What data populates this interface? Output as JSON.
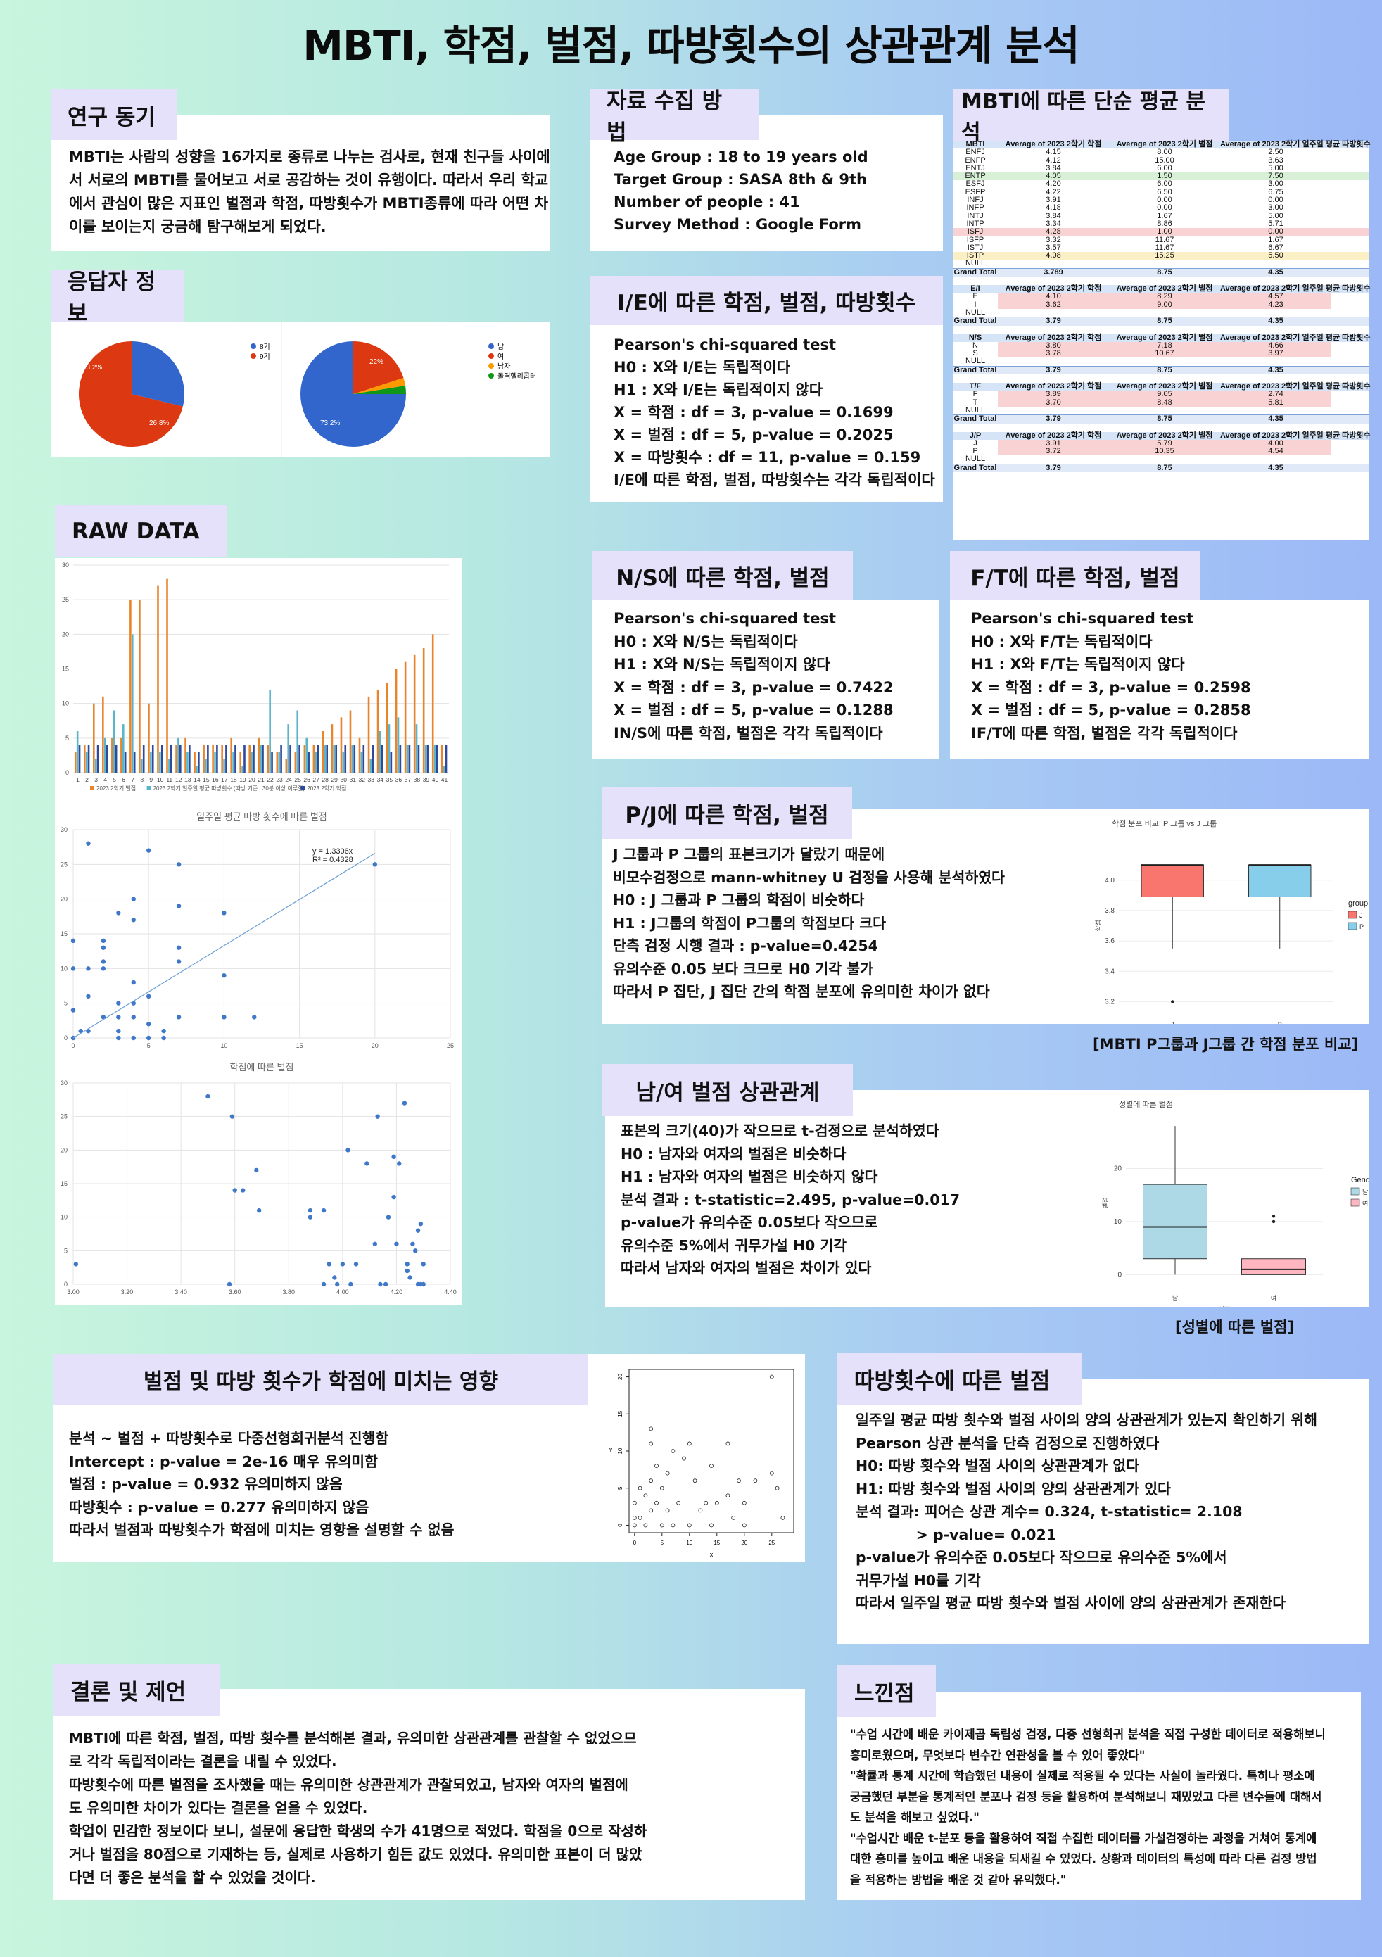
{
  "title": "MBTI, 학점, 벌점, 따방횟수의 상관관계 분석",
  "motivation": {
    "tag": "연구 동기",
    "lines": [
      "MBTI는 사람의 성향을 16가지로 종류로 나누는 검사로, 현재 친구들 사이에",
      "서 서로의 MBTI를 물어보고 서로 공감하는 것이 유행이다. 따라서 우리 학교",
      "에서 관심이 많은 지표인 벌점과 학점, 따방횟수가 MBTI종류에 따라 어떤 차",
      "이를 보이는지 궁금해 탐구해보게 되었다."
    ]
  },
  "data_collection": {
    "tag": "자료 수집 방법",
    "lines": [
      "Age Group : 18 to 19 years old",
      "Target Group : SASA 8th & 9th",
      "Number of people : 41",
      "Survey Method : Google Form"
    ]
  },
  "mbti_means": {
    "tag": "MBTI에 따른 단순 평균 분석",
    "headers": [
      "MBTI",
      "Average of 2023 2학기 학점",
      "Average of 2023 2학기 벌점",
      "Average of 2023 2학기 일주일 평균 따방횟수"
    ],
    "main_rows": [
      [
        "ENFJ",
        "4.15",
        "8.00",
        "2.50"
      ],
      [
        "ENFP",
        "4.12",
        "15.00",
        "3.63"
      ],
      [
        "ENTJ",
        "3.84",
        "6.00",
        "5.00"
      ],
      [
        "ENTP",
        "4.05",
        "1.50",
        "7.50"
      ],
      [
        "ESFJ",
        "4.20",
        "6.00",
        "3.00"
      ],
      [
        "ESFP",
        "4.22",
        "6.50",
        "6.75"
      ],
      [
        "INFJ",
        "3.91",
        "0.00",
        "0.00"
      ],
      [
        "INFP",
        "4.18",
        "0.00",
        "3.00"
      ],
      [
        "INTJ",
        "3.84",
        "1.67",
        "5.00"
      ],
      [
        "INTP",
        "3.34",
        "8.86",
        "5.71"
      ],
      [
        "ISFJ",
        "4.28",
        "1.00",
        "0.00"
      ],
      [
        "ISFP",
        "3.32",
        "11.67",
        "1.67"
      ],
      [
        "ISTJ",
        "3.57",
        "11.67",
        "6.67"
      ],
      [
        "ISTP",
        "4.08",
        "15.25",
        "5.50"
      ],
      [
        "NULL",
        "",
        "",
        ""
      ]
    ],
    "main_total": [
      "Grand Total",
      "3.789",
      "8.75",
      "4.35"
    ],
    "groups": [
      {
        "key": "E/I",
        "rows": [
          [
            "E",
            "4.10",
            "8.29",
            "4.57"
          ],
          [
            "I",
            "3.62",
            "9.00",
            "4.23"
          ],
          [
            "NULL",
            "",
            "",
            ""
          ]
        ],
        "total": [
          "Grand Total",
          "3.79",
          "8.75",
          "4.35"
        ]
      },
      {
        "key": "N/S",
        "rows": [
          [
            "N",
            "3.80",
            "7.18",
            "4.66"
          ],
          [
            "S",
            "3.78",
            "10.67",
            "3.97"
          ],
          [
            "NULL",
            "",
            "",
            ""
          ]
        ],
        "total": [
          "Grand Total",
          "3.79",
          "8.75",
          "4.35"
        ]
      },
      {
        "key": "T/F",
        "rows": [
          [
            "F",
            "3.89",
            "9.05",
            "2.74"
          ],
          [
            "T",
            "3.70",
            "8.48",
            "5.81"
          ],
          [
            "NULL",
            "",
            "",
            ""
          ]
        ],
        "total": [
          "Grand Total",
          "3.79",
          "8.75",
          "4.35"
        ]
      },
      {
        "key": "J/P",
        "rows": [
          [
            "J",
            "3.91",
            "5.79",
            "4.00"
          ],
          [
            "P",
            "3.72",
            "10.35",
            "4.54"
          ],
          [
            "NULL",
            "",
            "",
            ""
          ]
        ],
        "total": [
          "Grand Total",
          "3.79",
          "8.75",
          "4.35"
        ]
      }
    ]
  },
  "respondents": {
    "tag": "응답자 정보",
    "pie1": {
      "legend": [
        "8기",
        "9기"
      ],
      "labels": [
        "73.2%",
        "26.8%"
      ],
      "colors": [
        "#3366cc",
        "#dc3912"
      ]
    },
    "pie2": {
      "legend": [
        "남",
        "여",
        "남자",
        "돌격헬리콥터"
      ],
      "labels": [
        "73.2%",
        "22%"
      ],
      "colors": [
        "#3366cc",
        "#dc3912",
        "#ff9900",
        "#109618"
      ]
    }
  },
  "ie": {
    "tag": "I/E에 따른 학점, 벌점, 따방횟수",
    "lines": [
      "Pearson's chi-squared test",
      "H0 : X와 I/E는 독립적이다",
      "H1 : X와 I/E는 독립적이지 않다",
      "X = 학점 : df = 3, p-value = 0.1699",
      "X = 벌점 : df = 5, p-value = 0.2025",
      "X = 따방횟수 : df = 11, p-value = 0.159",
      "I/E에 따른 학점, 벌점, 따방횟수는 각각 독립적이다"
    ]
  },
  "raw": {
    "tag": "RAW DATA",
    "bar_chart": {
      "type": "bar",
      "categories": [
        "1",
        "2",
        "3",
        "4",
        "5",
        "6",
        "7",
        "8",
        "9",
        "10",
        "11",
        "12",
        "13",
        "14",
        "15",
        "16",
        "17",
        "18",
        "19",
        "20",
        "21",
        "22",
        "23",
        "24",
        "25",
        "26",
        "27",
        "28",
        "29",
        "30",
        "31",
        "32",
        "33",
        "34",
        "35",
        "36",
        "37",
        "38",
        "39",
        "40",
        "41"
      ],
      "series": [
        {
          "name": "2023 2학기 벌점",
          "color": "#e9842c",
          "values": [
            3,
            4,
            10,
            11,
            5,
            5,
            25,
            25,
            10,
            27,
            28,
            4,
            5,
            3,
            4,
            4,
            4,
            5,
            3,
            4,
            5,
            4,
            3,
            2,
            3,
            4,
            4,
            6,
            7,
            8,
            9,
            5,
            11,
            12,
            13,
            15,
            16,
            17,
            18,
            20,
            4
          ]
        },
        {
          "name": "2023 2학기 일주일 평균 따방횟수 (따방 기준 : 30분 이상 이루질)",
          "color": "#5bb5c8",
          "values": [
            6,
            3,
            2,
            5,
            9,
            7,
            20,
            2,
            3,
            3,
            2,
            5,
            3,
            1,
            2,
            3,
            2,
            3,
            1,
            3,
            4,
            12,
            3,
            7,
            9,
            5,
            3,
            4,
            4,
            3,
            4,
            3,
            2,
            6,
            7,
            8,
            4,
            7,
            4,
            4,
            1
          ]
        },
        {
          "name": "2023 2학기 학점",
          "color": "#2e4a9c",
          "values": [
            4,
            4,
            4,
            4,
            4,
            3,
            3,
            4,
            4,
            4,
            4,
            4,
            4,
            3,
            4,
            4,
            4,
            4,
            4,
            4,
            4,
            3,
            4,
            4,
            4,
            3,
            4,
            4,
            4,
            4,
            4,
            4,
            4,
            4,
            3,
            4,
            4,
            4,
            4,
            4,
            4
          ]
        }
      ],
      "ylim": [
        0,
        30
      ],
      "yticks": [
        "0",
        "5",
        "10",
        "15",
        "20",
        "25",
        "30"
      ]
    },
    "scatter1": {
      "type": "scatter",
      "title": "일주일 평균 따방 횟수에 따른 벌점",
      "trend_eq": "y = 1.3306x",
      "trend_r2": "R² = 0.4328",
      "xlim": [
        0,
        25
      ],
      "ylim": [
        0,
        30
      ],
      "xticks": [
        "0",
        "5",
        "10",
        "15",
        "20",
        "25"
      ],
      "yticks": [
        "0",
        "5",
        "10",
        "15",
        "20",
        "25",
        "30"
      ],
      "points": [
        [
          0,
          0
        ],
        [
          0,
          14
        ],
        [
          0,
          10
        ],
        [
          0.5,
          1
        ],
        [
          1,
          28
        ],
        [
          1,
          6
        ],
        [
          1,
          10
        ],
        [
          2,
          3
        ],
        [
          2,
          10
        ],
        [
          2,
          14
        ],
        [
          3,
          18
        ],
        [
          3,
          3
        ],
        [
          3,
          1
        ],
        [
          4,
          0
        ],
        [
          4,
          5
        ],
        [
          5,
          2
        ],
        [
          5,
          27
        ],
        [
          5,
          6
        ],
        [
          6,
          1
        ],
        [
          6,
          0
        ],
        [
          4,
          3
        ],
        [
          4,
          8
        ],
        [
          4,
          17
        ],
        [
          4,
          20
        ],
        [
          3,
          5
        ],
        [
          2,
          13
        ],
        [
          2,
          11
        ],
        [
          7,
          25
        ],
        [
          7,
          19
        ],
        [
          7,
          13
        ],
        [
          7,
          11
        ],
        [
          10,
          18
        ],
        [
          10,
          9
        ],
        [
          10,
          3
        ],
        [
          12,
          3
        ],
        [
          20,
          25
        ],
        [
          7,
          3
        ],
        [
          3,
          0
        ],
        [
          1,
          1
        ],
        [
          0,
          4
        ],
        [
          5,
          0
        ]
      ]
    },
    "scatter2": {
      "type": "scatter",
      "title": "학점에 따른 벌점",
      "xlim": [
        3.0,
        4.4
      ],
      "ylim": [
        0,
        30
      ],
      "xticks": [
        "3.00",
        "3.20",
        "3.40",
        "3.60",
        "3.80",
        "4.00",
        "4.20",
        "4.40"
      ],
      "yticks": [
        "0",
        "5",
        "10",
        "15",
        "20",
        "25",
        "30"
      ],
      "points": [
        [
          3.01,
          3
        ],
        [
          3.5,
          28
        ],
        [
          3.59,
          25
        ],
        [
          3.6,
          14
        ],
        [
          3.63,
          14
        ],
        [
          3.68,
          17
        ],
        [
          3.69,
          11
        ],
        [
          3.58,
          0
        ],
        [
          3.88,
          11
        ],
        [
          3.88,
          10
        ],
        [
          3.93,
          11
        ],
        [
          3.93,
          0
        ],
        [
          3.95,
          3
        ],
        [
          3.97,
          1
        ],
        [
          3.98,
          0
        ],
        [
          4.0,
          3
        ],
        [
          4.02,
          20
        ],
        [
          4.03,
          0
        ],
        [
          4.05,
          3
        ],
        [
          4.09,
          18
        ],
        [
          4.12,
          6
        ],
        [
          4.13,
          25
        ],
        [
          4.16,
          0
        ],
        [
          4.17,
          10
        ],
        [
          4.19,
          19
        ],
        [
          4.19,
          13
        ],
        [
          4.2,
          6
        ],
        [
          4.21,
          18
        ],
        [
          4.23,
          27
        ],
        [
          4.24,
          2
        ],
        [
          4.24,
          3
        ],
        [
          4.25,
          1
        ],
        [
          4.26,
          6
        ],
        [
          4.27,
          5
        ],
        [
          4.28,
          8
        ],
        [
          4.29,
          9
        ],
        [
          4.3,
          3
        ],
        [
          4.3,
          0
        ],
        [
          4.29,
          0
        ],
        [
          4.14,
          0
        ],
        [
          4.28,
          0
        ]
      ]
    }
  },
  "ns": {
    "tag": "N/S에 따른 학점, 벌점",
    "lines": [
      "Pearson's chi-squared test",
      "H0 : X와 N/S는 독립적이다",
      "H1 : X와 N/S는 독립적이지 않다",
      "X = 학점 : df = 3, p-value = 0.7422",
      "X = 벌점 : df = 5, p-value = 0.1288",
      "IN/S에 따른 학점, 벌점은 각각 독립적이다"
    ]
  },
  "ft": {
    "tag": "F/T에 따른 학점, 벌점",
    "lines": [
      "Pearson's chi-squared test",
      "H0 : X와 F/T는 독립적이다",
      "H1 : X와 F/T는 독립적이지 않다",
      "X = 학점 : df = 3, p-value = 0.2598",
      "X = 벌점 : df = 5, p-value = 0.2858",
      "IF/T에 따른 학점, 벌점은 각각 독립적이다"
    ]
  },
  "pj": {
    "tag": "P/J에 따른 학점, 벌점",
    "lines": [
      "J 그룹과 P 그룹의 표본크기가 달랐기 때문에",
      "비모수검정으로 mann-whitney U 검정을 사용해 분석하였다",
      "H0 : J 그룹과 P 그룹의 학점이 비슷하다",
      "H1 : J그룹의 학점이 P그룹의 학점보다 크다",
      "단측 검정 시행 결과 : p-value=0.4254",
      "유의수준 0.05 보다 크므로 H0 기각 불가",
      "따라서 P 집단, J 집단 간의 학점 분포에 유의미한 차이가 없다"
    ],
    "chart": {
      "type": "boxplot",
      "title": "학점 분포 비교: P 그룹 vs J 그룹",
      "ylabel": "학점",
      "legend_title": "group",
      "ylim": [
        3.1,
        4.3
      ],
      "yticks": [
        "3.2",
        "3.4",
        "3.6",
        "3.8",
        "4.0"
      ],
      "categories": [
        "J",
        "P"
      ],
      "boxes": [
        {
          "name": "J",
          "color": "#f8766d",
          "min": 3.55,
          "q1": 3.89,
          "median": 4.1,
          "q3": 4.1,
          "max": 4.1,
          "outliers": [
            3.2
          ]
        },
        {
          "name": "P",
          "color": "#87ceeb",
          "min": 3.55,
          "q1": 3.89,
          "median": 4.1,
          "q3": 4.1,
          "max": 4.1,
          "outliers": []
        }
      ]
    },
    "caption": "[MBTI P그룹과 J그룹 간 학점 분포 비교]"
  },
  "gender": {
    "tag": "남/여 벌점 상관관계",
    "lines": [
      "표본의 크기(40)가 작으므로 t-검정으로 분석하였다",
      "H0 : 남자와 여자의 벌점은 비슷하다",
      "H1 : 남자와 여자의 벌점은 비슷하지 않다",
      " 분석 결과 : t-statistic=2.495, p-value=0.017",
      "p-value가 유의수준 0.05보다 작으므로",
      "유의수준 5%에서 귀무가설 H0 기각",
      "따라서 남자와 여자의 벌점은 차이가 있다"
    ],
    "chart": {
      "type": "boxplot",
      "title": "성별에 따른 벌점",
      "xlabel": "성별",
      "ylabel": "벌점",
      "legend_title": "Gender",
      "ylim": [
        -3,
        30
      ],
      "yticks": [
        "0",
        "10",
        "20"
      ],
      "categories": [
        "남",
        "여"
      ],
      "boxes": [
        {
          "name": "남",
          "color": "#add8e6",
          "min": 0,
          "q1": 3,
          "median": 9,
          "q3": 17,
          "max": 28,
          "outliers": []
        },
        {
          "name": "여",
          "color": "#ffb6c1",
          "min": 0,
          "q1": 0,
          "median": 1,
          "q3": 3,
          "max": 3,
          "outliers": [
            10,
            11
          ]
        }
      ]
    },
    "caption": "[성별에 따른 벌점]"
  },
  "regression": {
    "tag": "벌점 및 따방 횟수가 학점에 미치는 영향",
    "lines": [
      "분석 ~ 벌점 + 따방횟수로 다중선형회귀분석 진행함",
      "Intercept : p-value = 2e-16 매우 유의미함",
      "벌점 : p-value = 0.932 유의미하지 않음",
      "따방횟수 : p-value = 0.277 유의미하지 않음",
      "따라서 벌점과 따방횟수가 학점에 미치는 영향을 설명할 수 없음"
    ],
    "chart": {
      "type": "scatter",
      "xlabel": "x",
      "ylabel": "y",
      "xlim": [
        -1,
        29
      ],
      "ylim": [
        -1,
        21
      ],
      "xticks": [
        "0",
        "5",
        "10",
        "15",
        "20",
        "25"
      ],
      "yticks": [
        "0",
        "5",
        "10",
        "15",
        "20"
      ],
      "points": [
        [
          0,
          0
        ],
        [
          0,
          3
        ],
        [
          1,
          1
        ],
        [
          1,
          5
        ],
        [
          2,
          4
        ],
        [
          2,
          0
        ],
        [
          3,
          2
        ],
        [
          3,
          6
        ],
        [
          3,
          11
        ],
        [
          3,
          13
        ],
        [
          4,
          8
        ],
        [
          4,
          3
        ],
        [
          5,
          5
        ],
        [
          5,
          0
        ],
        [
          6,
          7
        ],
        [
          6,
          2
        ],
        [
          7,
          10
        ],
        [
          8,
          3
        ],
        [
          10,
          0
        ],
        [
          10,
          11
        ],
        [
          11,
          6
        ],
        [
          12,
          2
        ],
        [
          14,
          8
        ],
        [
          14,
          0
        ],
        [
          15,
          3
        ],
        [
          17,
          4
        ],
        [
          17,
          11
        ],
        [
          19,
          6
        ],
        [
          20,
          0
        ],
        [
          20,
          3
        ],
        [
          25,
          20
        ],
        [
          25,
          7
        ],
        [
          26,
          5
        ],
        [
          27,
          1
        ],
        [
          9,
          9
        ],
        [
          18,
          1
        ],
        [
          7,
          0
        ],
        [
          13,
          3
        ],
        [
          22,
          6
        ],
        [
          0,
          1
        ]
      ]
    }
  },
  "ttabang": {
    "tag": "따방횟수에 따른 벌점",
    "lines": [
      "일주일 평균 따방 횟수와 벌점 사이의 양의 상관관계가 있는지 확인하기 위해",
      "Pearson 상관 분석을 단측 검정으로 진행하였다",
      "H0: 따방 횟수와 벌점 사이의 상관관계가 없다",
      "H1: 따방 횟수와 벌점 사이의 양의 상관관계가 있다",
      "분석 결과: 피어슨 상관 계수= 0.324, t-statistic= 2.108",
      "            > p-value= 0.021",
      "p-value가 유의수준 0.05보다 작으므로 유의수준 5%에서",
      "귀무가설 H0를 기각",
      "따라서 일주일 평균 따방 횟수와 벌점 사이에 양의 상관관계가 존재한다"
    ]
  },
  "conclusion": {
    "tag": "결론 및 제언",
    "lines": [
      "MBTI에 따른 학점, 벌점, 따방 횟수를 분석해본 결과, 유의미한 상관관계를 관찰할 수 없었으므",
      "로 각각 독립적이라는 결론을 내릴 수 있었다.",
      "따방횟수에 따른 벌점을 조사했을 때는 유의미한 상관관계가 관찰되었고, 남자와 여자의 벌점에",
      "도 유의미한 차이가 있다는 결론을 얻을 수 있었다.",
      "학업이 민감한 정보이다 보니, 설문에 응답한 학생의 수가 41명으로 적었다. 학점을 0으로 작성하",
      "거나 벌점을 80점으로 기재하는 등, 실제로 사용하기 힘든 값도 있었다. 유의미한 표본이 더 많았",
      "다면 더 좋은 분석을 할 수 있었을 것이다."
    ]
  },
  "feelings": {
    "tag": "느낀점",
    "lines": [
      "\"수업 시간에 배운 카이제곱 독립성 검정, 다중 선형회귀 분석을 직접 구성한 데이터로 적용해보니",
      "흥미로웠으며, 무엇보다 변수간 연관성을 볼 수 있어 좋았다\"",
      "\"확률과 통계 시간에 학습했던 내용이 실제로 적용될 수 있다는 사실이 놀라웠다. 특히나 평소에",
      "궁금했던 부분을 통계적인 분포나 검정 등을 활용하여 분석해보니 재밌었고 다른 변수들에 대해서",
      "도 분석을 해보고 싶었다.\"",
      "\"수업시간 배운 t-분포 등을 활용하여 직접 수집한 데이터를 가설검정하는 과정을 거쳐여 통계에",
      "대한 흥미를 높이고 배운 내용을 되새길 수 있었다. 상황과 데이터의 특성에 따라 다른 검정 방법",
      "을 적용하는 방법을 배운 것 같아 유익했다.\""
    ]
  },
  "colors": {
    "tag_bg": "#e6e1fa",
    "panel_bg": "#ffffff",
    "highlight_red": "#f9d3d3",
    "highlight_green": "#d7f0d6",
    "highlight_yellow": "#fbf0c5"
  }
}
